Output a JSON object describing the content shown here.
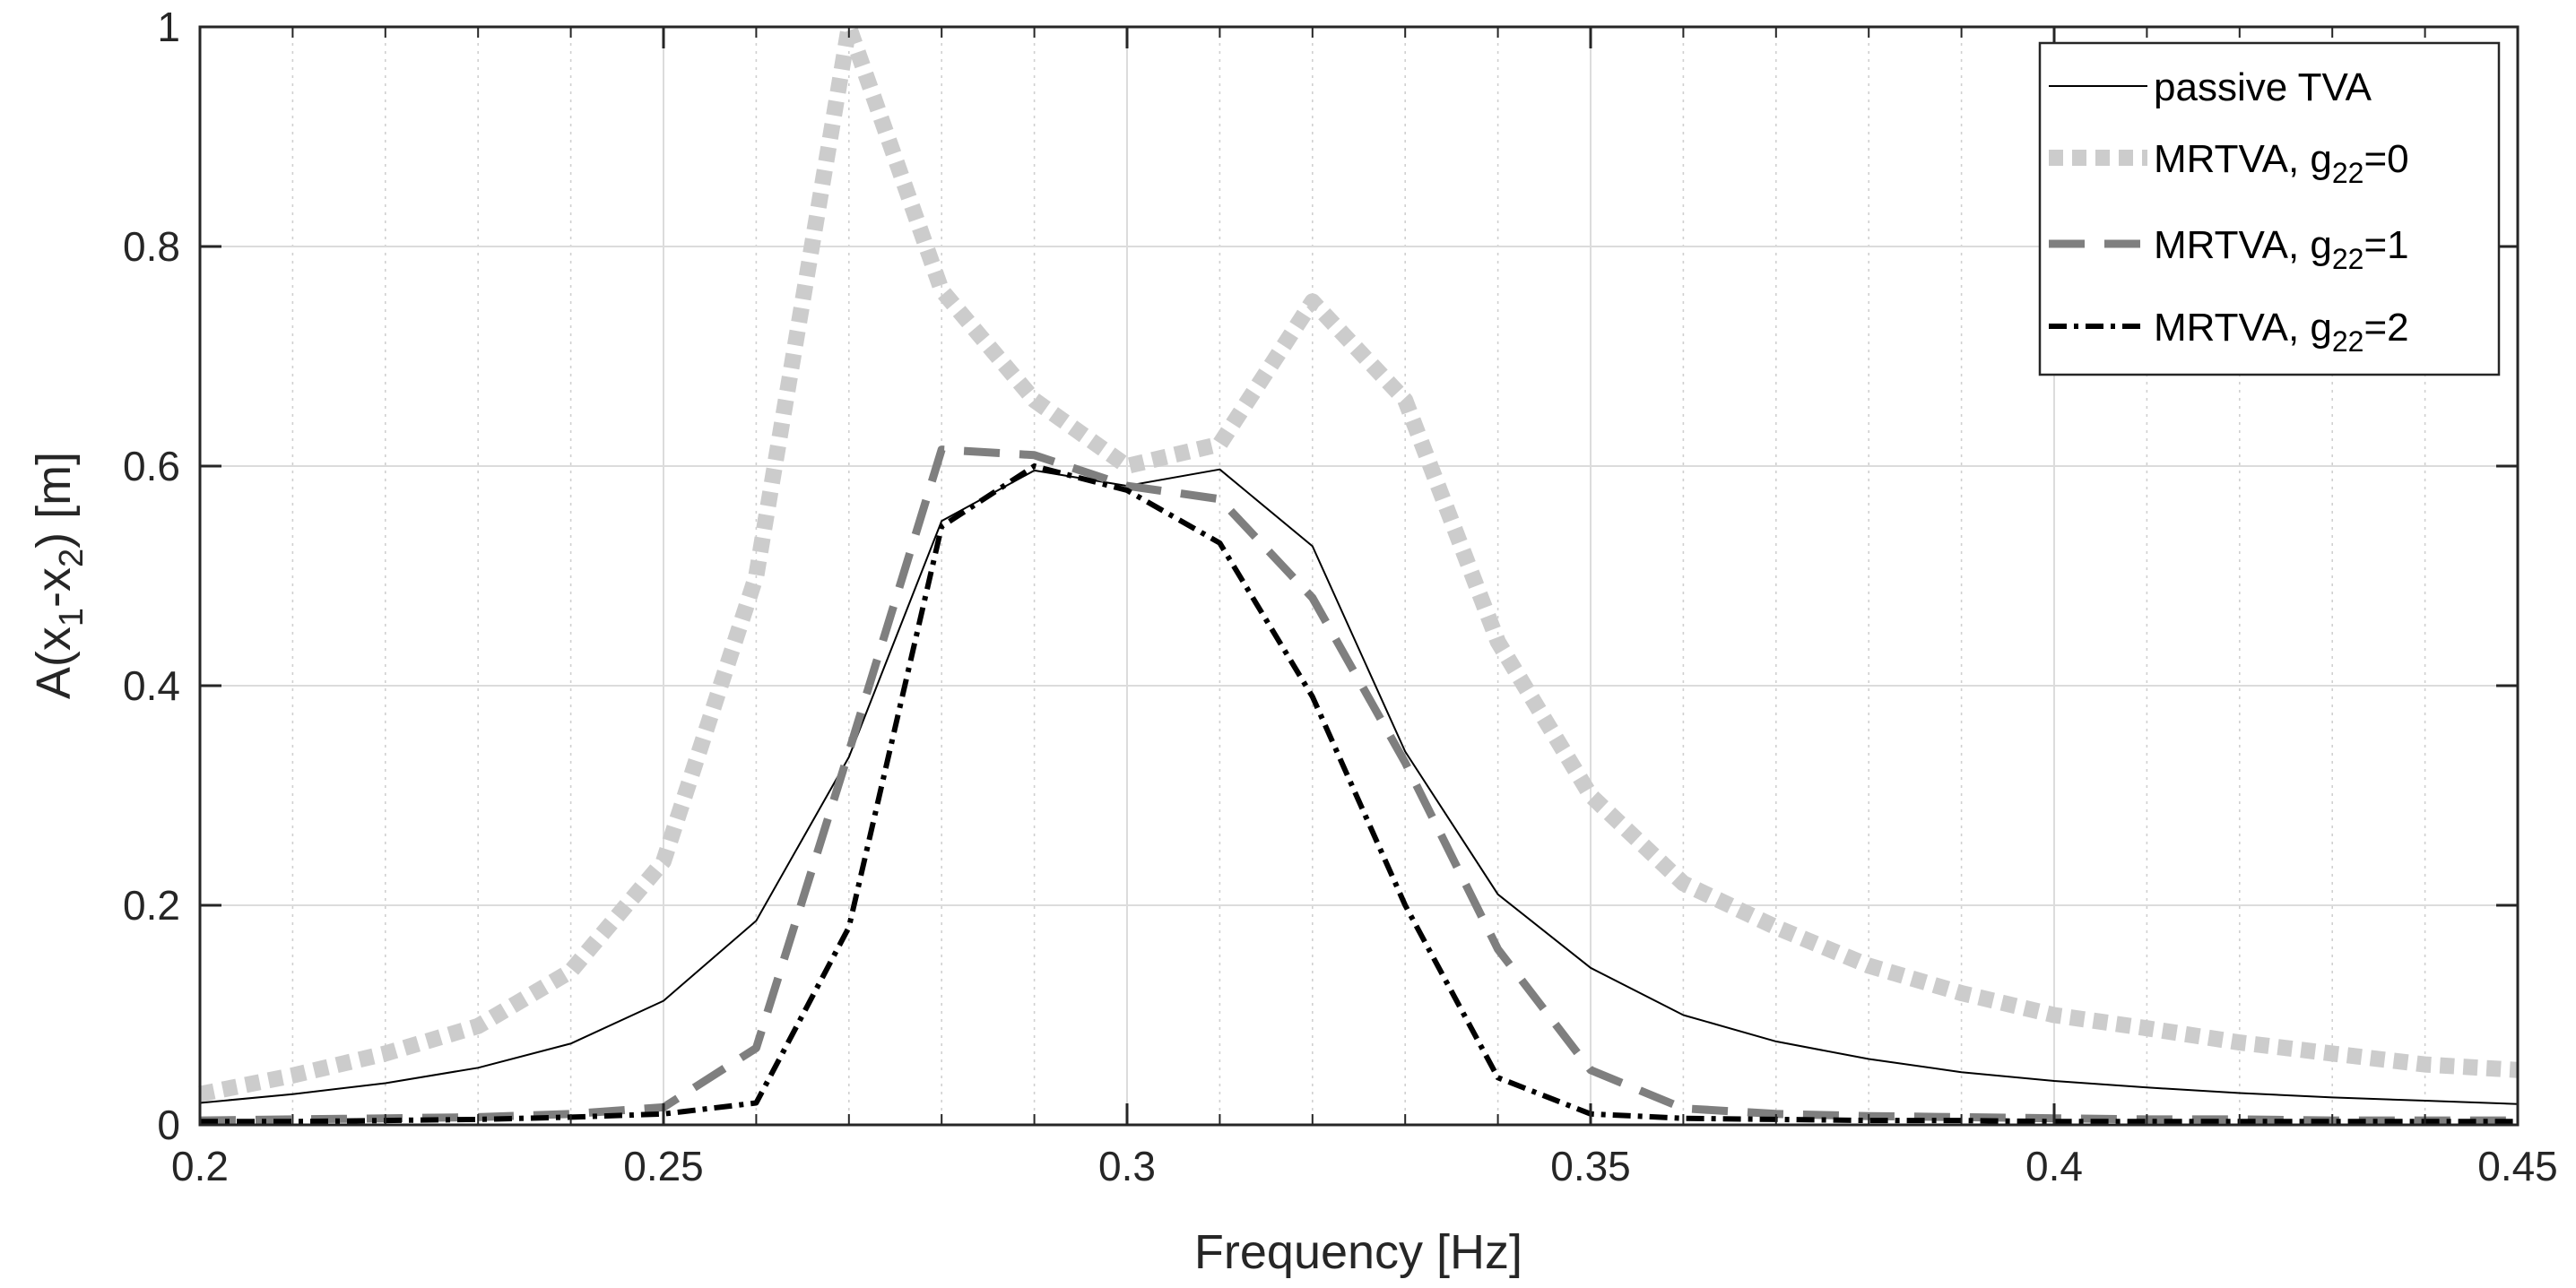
{
  "chart_data": {
    "type": "line",
    "xlabel": "Frequency [Hz]",
    "ylabel": "A(x1-x2) [m]",
    "ylabel_parts": {
      "base": "A(x",
      "sub1": "1",
      "mid": "-x",
      "sub2": "2",
      "end": ") [m]"
    },
    "xlim": [
      0.2,
      0.45
    ],
    "ylim": [
      0,
      1
    ],
    "xticks": [
      0.2,
      0.25,
      0.3,
      0.35,
      0.4,
      0.45
    ],
    "xtick_labels": [
      "0.2",
      "0.25",
      "0.3",
      "0.35",
      "0.4",
      "0.45"
    ],
    "yticks": [
      0,
      0.2,
      0.4,
      0.6,
      0.8,
      1
    ],
    "ytick_labels": [
      "0",
      "0.2",
      "0.4",
      "0.6",
      "0.8",
      "1"
    ],
    "x_minor_grid": [
      0.21,
      0.22,
      0.23,
      0.24,
      0.26,
      0.27,
      0.28,
      0.29,
      0.31,
      0.32,
      0.33,
      0.34,
      0.36,
      0.37,
      0.38,
      0.39,
      0.41,
      0.42,
      0.43,
      0.44
    ],
    "grid": true,
    "legend_position": "top-right",
    "x": [
      0.2,
      0.21,
      0.22,
      0.23,
      0.24,
      0.25,
      0.26,
      0.27,
      0.28,
      0.29,
      0.3,
      0.31,
      0.32,
      0.33,
      0.34,
      0.35,
      0.36,
      0.37,
      0.38,
      0.39,
      0.4,
      0.41,
      0.42,
      0.43,
      0.44,
      0.45
    ],
    "series": [
      {
        "name": "passive TVA",
        "legend": {
          "base": "passive TVA",
          "sub": "",
          "suffix": ""
        },
        "style": "solid",
        "color": "#000000",
        "values": [
          0.02,
          0.028,
          0.038,
          0.052,
          0.074,
          0.113,
          0.186,
          0.335,
          0.55,
          0.596,
          0.582,
          0.597,
          0.527,
          0.34,
          0.21,
          0.143,
          0.1,
          0.076,
          0.06,
          0.048,
          0.04,
          0.034,
          0.029,
          0.025,
          0.022,
          0.019
        ]
      },
      {
        "name": "MRTVA, g22=0",
        "legend": {
          "base": "MRTVA, g",
          "sub": "22",
          "suffix": "=0"
        },
        "style": "dotted",
        "color": "#cccccc",
        "values": [
          0.028,
          0.045,
          0.065,
          0.09,
          0.14,
          0.24,
          0.5,
          1.0,
          0.76,
          0.66,
          0.6,
          0.62,
          0.75,
          0.66,
          0.44,
          0.3,
          0.22,
          0.18,
          0.145,
          0.12,
          0.1,
          0.088,
          0.075,
          0.065,
          0.055,
          0.05
        ]
      },
      {
        "name": "MRTVA, g22=1",
        "legend": {
          "base": "MRTVA, g",
          "sub": "22",
          "suffix": "=1"
        },
        "style": "dashed",
        "color": "#7f7f7f",
        "values": [
          0.004,
          0.005,
          0.006,
          0.007,
          0.01,
          0.016,
          0.07,
          0.34,
          0.615,
          0.61,
          0.582,
          0.57,
          0.48,
          0.33,
          0.16,
          0.05,
          0.015,
          0.01,
          0.008,
          0.007,
          0.006,
          0.005,
          0.005,
          0.004,
          0.004,
          0.004
        ]
      },
      {
        "name": "MRTVA, g22=2",
        "legend": {
          "base": "MRTVA, g",
          "sub": "22",
          "suffix": "=2"
        },
        "style": "dashdot",
        "color": "#000000",
        "values": [
          0.003,
          0.003,
          0.004,
          0.005,
          0.007,
          0.01,
          0.02,
          0.18,
          0.545,
          0.6,
          0.578,
          0.53,
          0.39,
          0.2,
          0.043,
          0.01,
          0.006,
          0.005,
          0.004,
          0.004,
          0.003,
          0.003,
          0.003,
          0.003,
          0.003,
          0.003
        ]
      }
    ]
  }
}
